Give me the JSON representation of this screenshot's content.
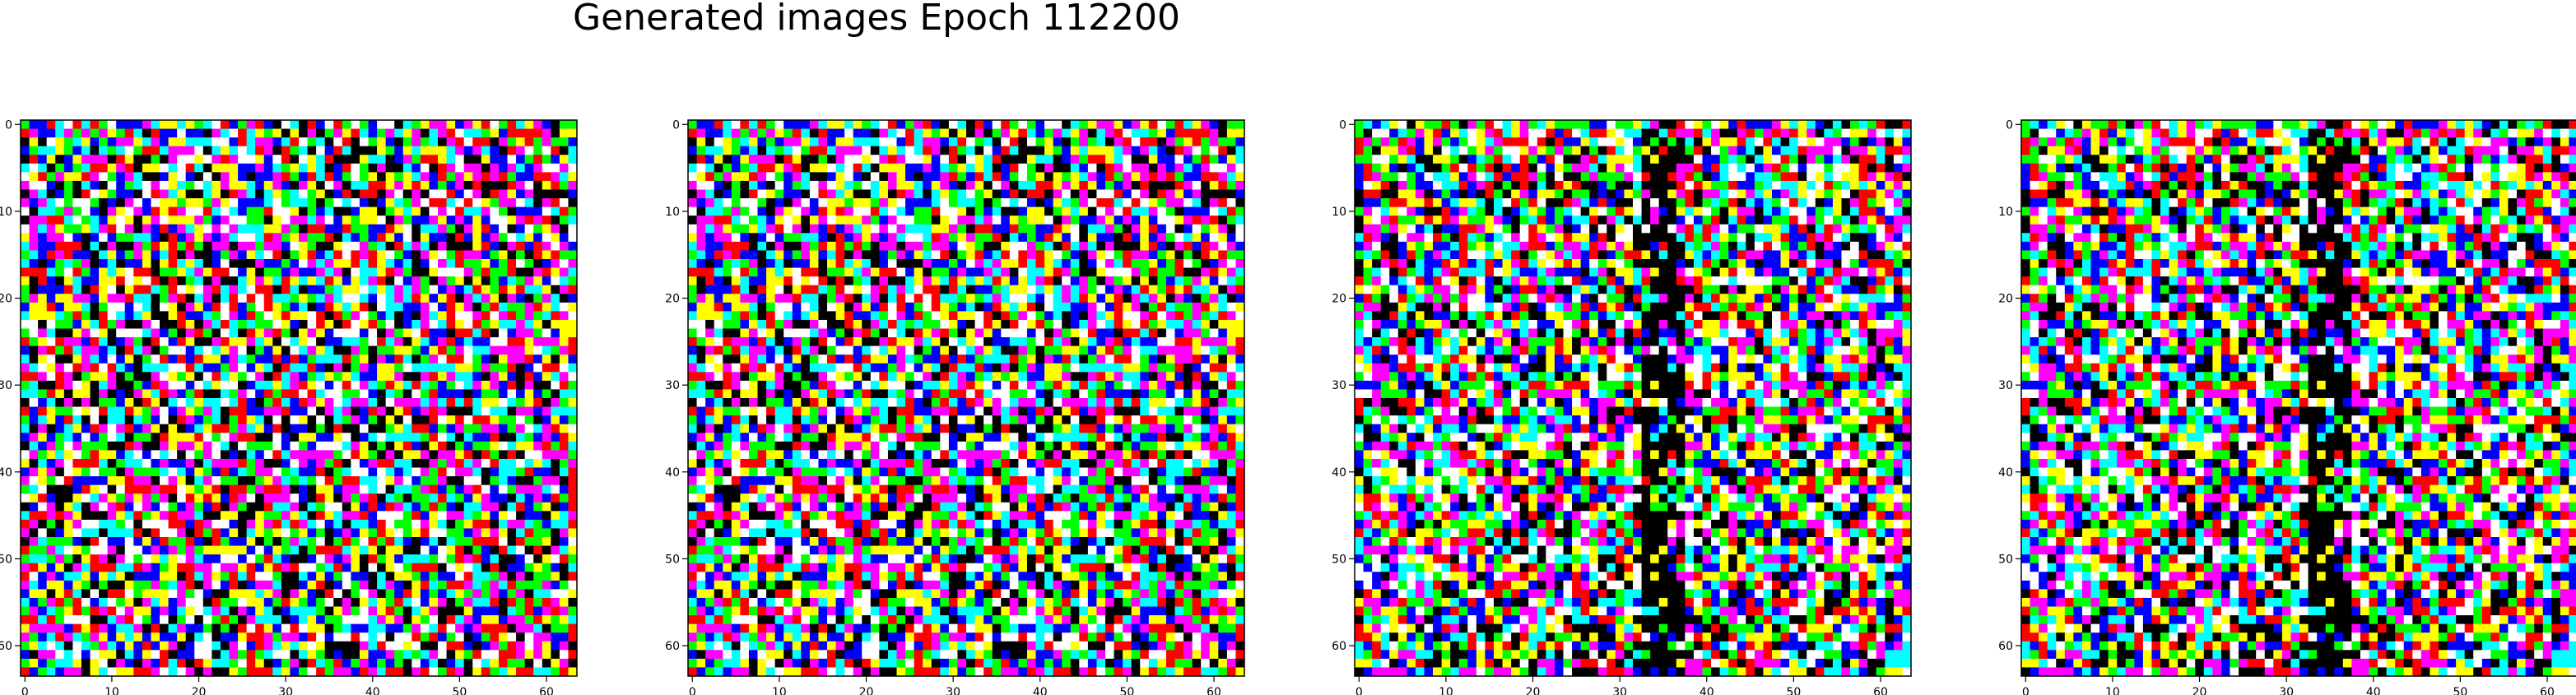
{
  "figure": {
    "title": "Generated images Epoch 112200"
  },
  "chart_data": [
    {
      "type": "heatmap",
      "title": "",
      "xlabel": "",
      "ylabel": "",
      "xlim": [
        -0.5,
        63.5
      ],
      "ylim": [
        63.5,
        -0.5
      ],
      "xticks": [
        0,
        10,
        20,
        30,
        40,
        50,
        60
      ],
      "yticks": [
        0,
        10,
        20,
        30,
        40,
        50,
        60
      ],
      "grid": false,
      "pixels": "64x64 RGB noise image (per-pixel values not individually legible)",
      "seed": 11
    },
    {
      "type": "heatmap",
      "title": "",
      "xlabel": "",
      "ylabel": "",
      "xlim": [
        -0.5,
        63.5
      ],
      "ylim": [
        63.5,
        -0.5
      ],
      "xticks": [
        0,
        10,
        20,
        30,
        40,
        50,
        60
      ],
      "yticks": [
        0,
        10,
        20,
        30,
        40,
        50,
        60
      ],
      "grid": false,
      "pixels": "64x64 RGB noise image (per-pixel values not individually legible)",
      "seed": 11
    },
    {
      "type": "heatmap",
      "title": "",
      "xlabel": "",
      "ylabel": "",
      "xlim": [
        -0.5,
        63.5
      ],
      "ylim": [
        63.5,
        -0.5
      ],
      "xticks": [
        0,
        10,
        20,
        30,
        40,
        50,
        60
      ],
      "yticks": [
        0,
        10,
        20,
        30,
        40,
        50,
        60
      ],
      "grid": false,
      "pixels": "64x64 RGB noise image with darker vertical band near x≈35",
      "seed": 27
    },
    {
      "type": "heatmap",
      "title": "",
      "xlabel": "",
      "ylabel": "",
      "xlim": [
        -0.5,
        63.5
      ],
      "ylim": [
        63.5,
        -0.5
      ],
      "xticks": [
        0,
        10,
        20,
        30,
        40,
        50,
        60
      ],
      "yticks": [
        0,
        10,
        20,
        30,
        40,
        50,
        60
      ],
      "grid": false,
      "pixels": "64x64 RGB noise image with darker vertical band near x≈35",
      "seed": 27
    }
  ],
  "palette": [
    "#ff0000",
    "#00ff00",
    "#0000ff",
    "#ffff00",
    "#ff00ff",
    "#00ffff",
    "#ffffff",
    "#000000"
  ]
}
